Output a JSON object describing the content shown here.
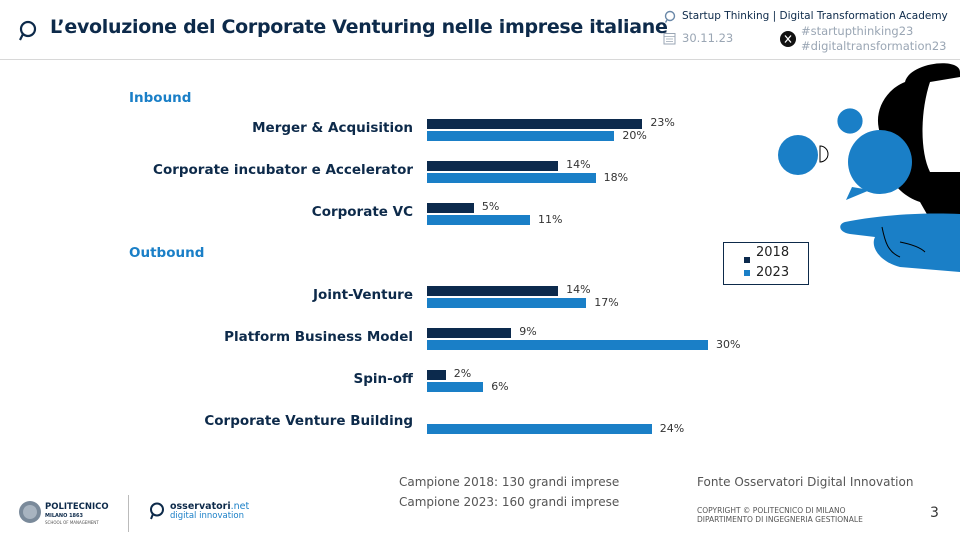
{
  "header": {
    "title": "L’evoluzione del Corporate Venturing nelle imprese italiane",
    "event": "Startup Thinking | Digital Transformation Academy",
    "date": "30.11.23",
    "hashtag1": "#startupthinking23",
    "hashtag2": "#digitaltransformation23"
  },
  "colors": {
    "s2018": "#0c2a4d",
    "s2023": "#1a7fc7",
    "accent": "#1a7fc7"
  },
  "chart_data": {
    "type": "bar",
    "orientation": "horizontal",
    "groups": [
      {
        "label": "Inbound",
        "categories": [
          "Merger & Acquisition",
          "Corporate incubator e Accelerator",
          "Corporate VC"
        ]
      },
      {
        "label": "Outbound",
        "categories": [
          "Joint-Venture",
          "Platform Business Model",
          "Spin-off",
          "Corporate Venture Building"
        ]
      }
    ],
    "categories": [
      "Merger & Acquisition",
      "Corporate incubator e Accelerator",
      "Corporate VC",
      "Joint-Venture",
      "Platform Business Model",
      "Spin-off",
      "Corporate Venture Building"
    ],
    "series": [
      {
        "name": "2018",
        "values": [
          23,
          14,
          5,
          14,
          9,
          2,
          null
        ]
      },
      {
        "name": "2023",
        "values": [
          20,
          18,
          11,
          17,
          30,
          6,
          24
        ]
      }
    ],
    "unit": "%",
    "xlim": [
      0,
      30
    ],
    "grid": false,
    "legend": "right"
  },
  "footer": {
    "sample2018": "Campione 2018: 130 grandi imprese",
    "sample2023": "Campione 2023: 160 grandi imprese",
    "source": "Fonte Osservatori Digital Innovation",
    "copyright1": "COPYRIGHT © POLITECNICO DI MILANO",
    "copyright2": "DIPARTIMENTO DI INGEGNERIA GESTIONALE",
    "page": "3",
    "logo1_name": "POLITECNICO",
    "logo1_sub": "MILANO 1863",
    "logo1_school": "SCHOOL OF MANAGEMENT",
    "logo2_a": "osservatori",
    "logo2_b": ".net",
    "logo2_c": "digital innovation"
  }
}
